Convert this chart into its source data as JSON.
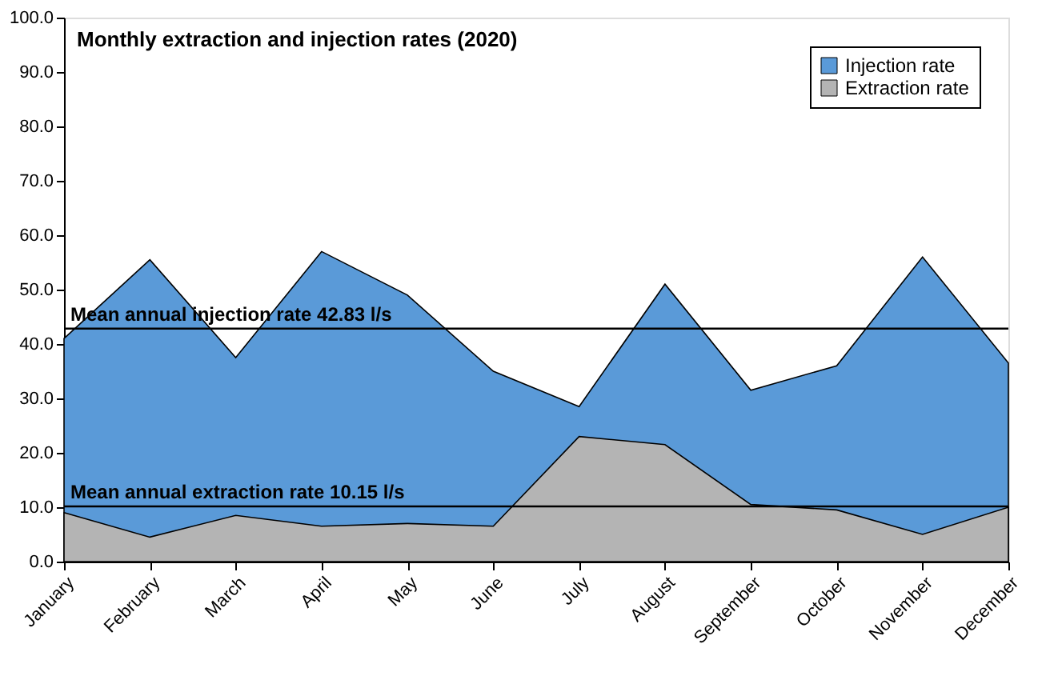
{
  "chart_data": {
    "type": "area",
    "title": "Monthly extraction and injection rates (2020)",
    "categories": [
      "January",
      "February",
      "March",
      "April",
      "May",
      "June",
      "July",
      "August",
      "September",
      "October",
      "November",
      "December"
    ],
    "series": [
      {
        "name": "Injection rate",
        "color": "#5a9ad8",
        "values": [
          41,
          55.5,
          37.5,
          57,
          49,
          35,
          28.5,
          51,
          31.5,
          36,
          56,
          36.5
        ]
      },
      {
        "name": "Extraction rate",
        "color": "#b4b4b4",
        "values": [
          9,
          4.5,
          8.5,
          6.5,
          7,
          6.5,
          23,
          21.5,
          10.5,
          9.5,
          5,
          10
        ]
      }
    ],
    "ylim": [
      0,
      100
    ],
    "yticks": [
      {
        "value": 0,
        "label": "0.0"
      },
      {
        "value": 10,
        "label": "10.0"
      },
      {
        "value": 20,
        "label": "20.0"
      },
      {
        "value": 30,
        "label": "30.0"
      },
      {
        "value": 40,
        "label": "40.0"
      },
      {
        "value": 50,
        "label": "50.0"
      },
      {
        "value": 60,
        "label": "60.0"
      },
      {
        "value": 70,
        "label": "70.0"
      },
      {
        "value": 80,
        "label": "80.0"
      },
      {
        "value": 90,
        "label": "90.0"
      },
      {
        "value": 100,
        "label": "100.0"
      }
    ],
    "ref_lines": [
      {
        "axis": "y",
        "value": 42.83,
        "label": "Mean annual injection rate 42.83 l/s"
      },
      {
        "axis": "y",
        "value": 10.15,
        "label": "Mean annual extraction rate 10.15 l/s"
      }
    ],
    "legend": "top right",
    "grid": false
  }
}
